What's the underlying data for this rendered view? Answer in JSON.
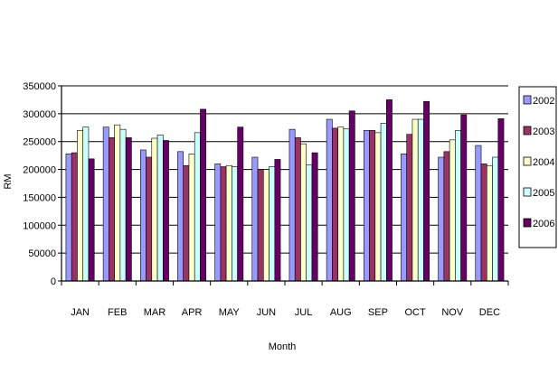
{
  "chart_data": {
    "type": "bar",
    "title": "",
    "xlabel": "Month",
    "ylabel": "RM",
    "ylim": [
      0,
      350000
    ],
    "y_ticks": [
      0,
      50000,
      100000,
      150000,
      200000,
      250000,
      300000,
      350000
    ],
    "y_tick_labels": [
      "0",
      "50000",
      "100000",
      "150000",
      "200000",
      "250000",
      "300000",
      "350000"
    ],
    "grid": true,
    "legend_position": "right",
    "categories": [
      "JAN",
      "FEB",
      "MAR",
      "APR",
      "MAY",
      "JUN",
      "JUL",
      "AUG",
      "SEP",
      "OCT",
      "NOV",
      "DEC"
    ],
    "series": [
      {
        "name": "2002",
        "color": "#9999ff",
        "values": [
          228000,
          276000,
          235000,
          232000,
          210000,
          222000,
          272000,
          290000,
          270000,
          228000,
          222000,
          243000
        ]
      },
      {
        "name": "2003",
        "color": "#993366",
        "values": [
          230000,
          257000,
          222000,
          207000,
          205000,
          200000,
          257000,
          274000,
          270000,
          263000,
          232000,
          210000
        ]
      },
      {
        "name": "2004",
        "color": "#ffffcc",
        "values": [
          270000,
          280000,
          256000,
          228000,
          207000,
          200000,
          246000,
          276000,
          266000,
          290000,
          253000,
          207000
        ]
      },
      {
        "name": "2005",
        "color": "#ccffff",
        "values": [
          276000,
          272000,
          262000,
          266000,
          205000,
          205000,
          208000,
          273000,
          283000,
          290000,
          270000,
          222000
        ]
      },
      {
        "name": "2006",
        "color": "#660066",
        "values": [
          219000,
          257000,
          252000,
          308000,
          276000,
          218000,
          230000,
          305000,
          325000,
          322000,
          298000,
          291000
        ]
      }
    ]
  }
}
